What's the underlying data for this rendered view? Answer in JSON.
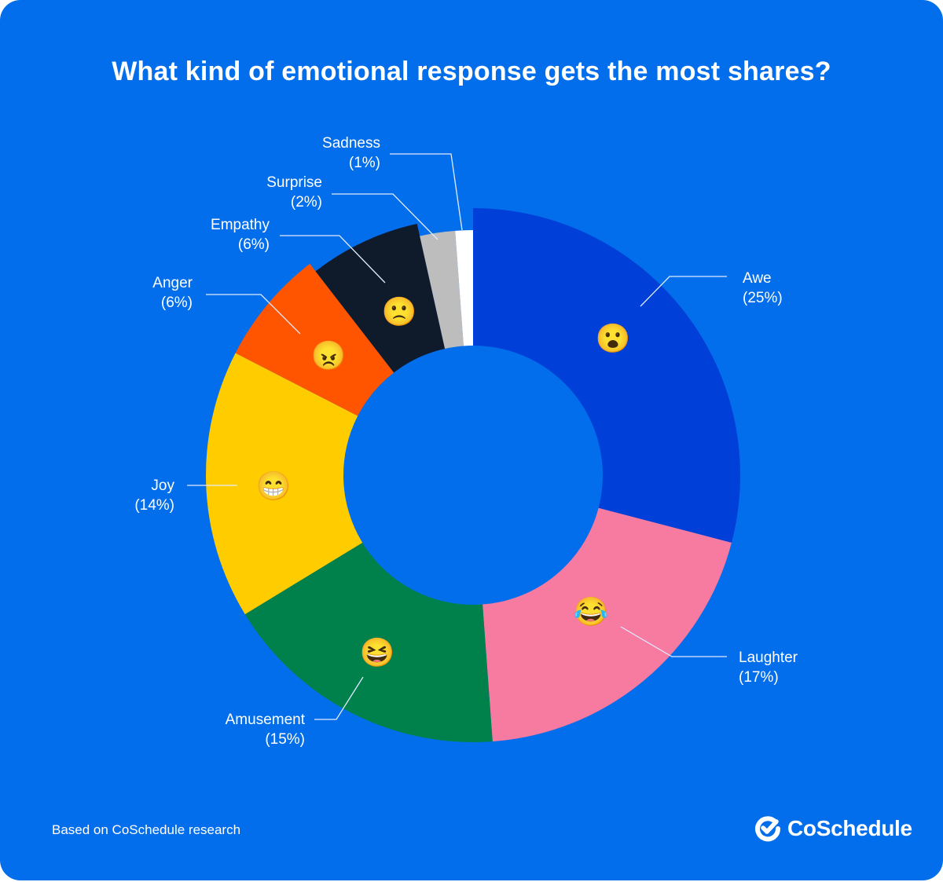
{
  "chart_data": {
    "type": "pie",
    "variant": "donut",
    "title": "What kind of emotional response gets the most shares?",
    "start": "top, clockwise",
    "slices": [
      {
        "label": "Awe",
        "value": 25,
        "value_label": "(25%)",
        "color": "#0040d8",
        "icon": "astonished-face-emoji",
        "emoji": "😮"
      },
      {
        "label": "Laughter",
        "value": 17,
        "value_label": "(17%)",
        "color": "#f77aa0",
        "icon": "tears-of-joy-emoji",
        "emoji": "😂"
      },
      {
        "label": "Amusement",
        "value": 15,
        "value_label": "(15%)",
        "color": "#00804a",
        "icon": "grinning-squinting-emoji",
        "emoji": "😆"
      },
      {
        "label": "Joy",
        "value": 14,
        "value_label": "(14%)",
        "color": "#ffcc00",
        "icon": "grinning-face-emoji",
        "emoji": "😁"
      },
      {
        "label": "Anger",
        "value": 6,
        "value_label": "(6%)",
        "color": "#ff5500",
        "icon": "angry-face-emoji",
        "emoji": "😠"
      },
      {
        "label": "Empathy",
        "value": 6,
        "value_label": "(6%)",
        "color": "#0f1a2b",
        "icon": "frowning-face-emoji",
        "emoji": "🙁"
      },
      {
        "label": "Surprise",
        "value": 2,
        "value_label": "(2%)",
        "color": "#bdbdbd",
        "icon": null,
        "emoji": null
      },
      {
        "label": "Sadness",
        "value": 1,
        "value_label": "(1%)",
        "color": "#ffffff",
        "icon": null,
        "emoji": null
      }
    ]
  },
  "footer": {
    "note": "Based on CoSchedule research",
    "brand": "CoSchedule",
    "brand_icon": "check-logo-icon"
  },
  "colors": {
    "background": "#036eeb",
    "text": "#ffffff",
    "leader_line": "#e0ecff"
  }
}
